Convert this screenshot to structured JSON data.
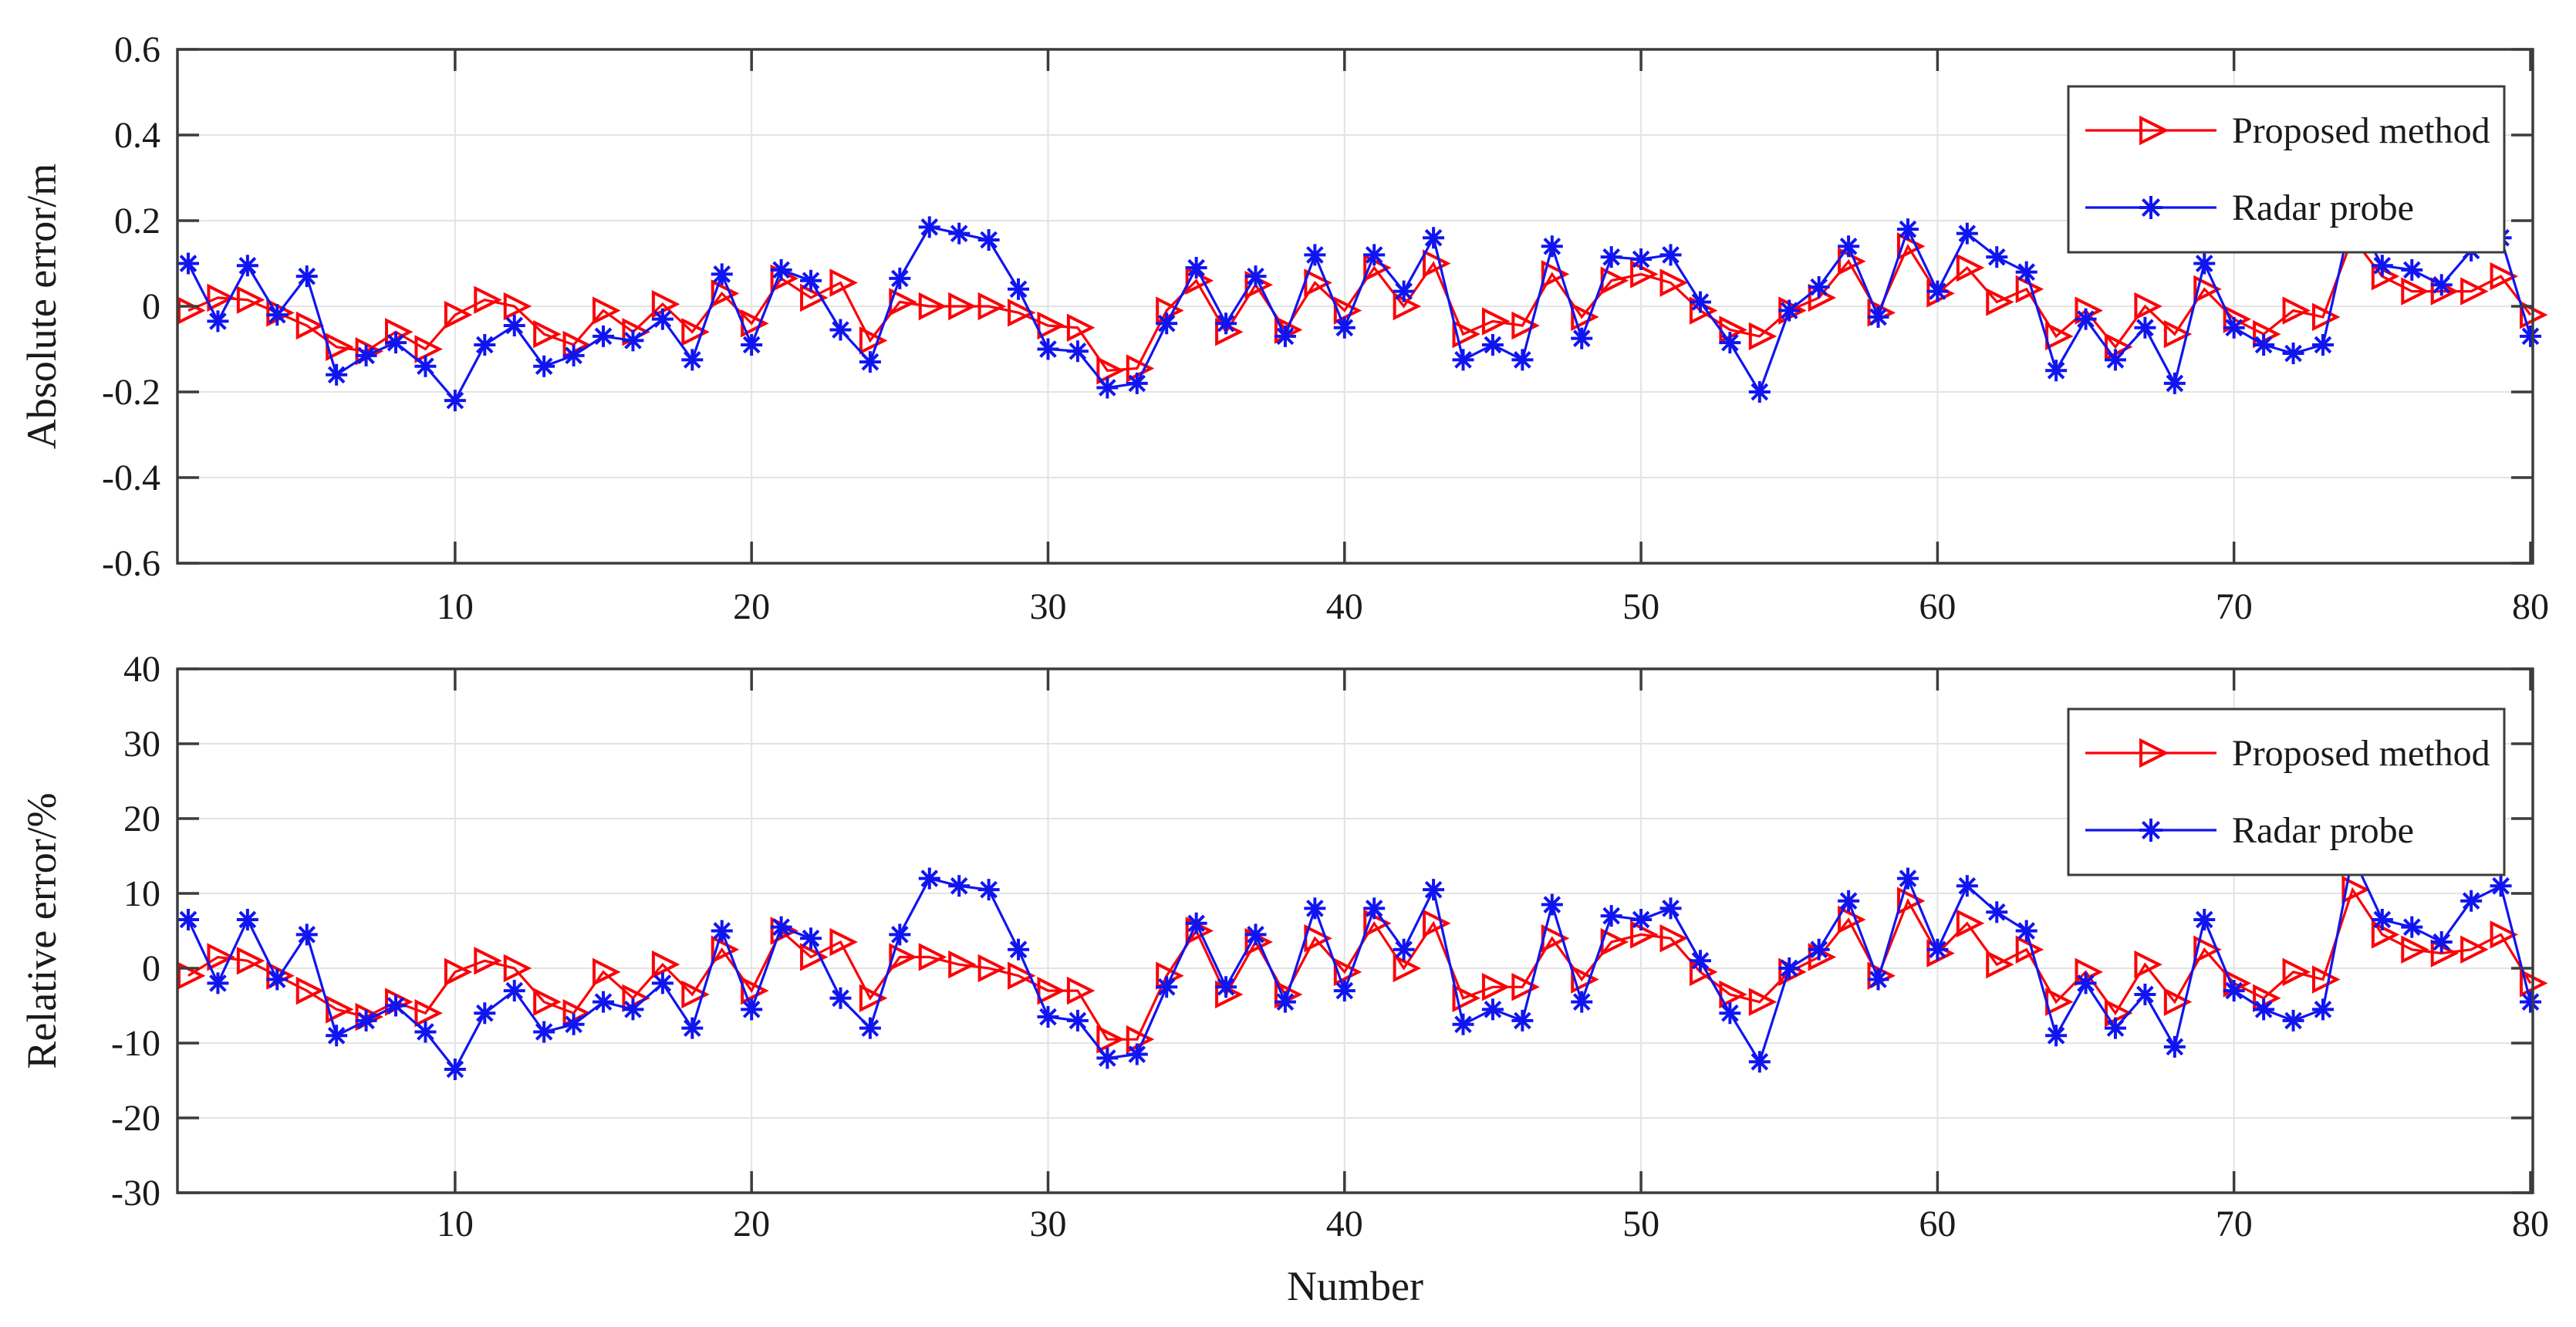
{
  "figure": {
    "background": "#ffffff",
    "axis_color": "#3c3c3c",
    "grid_color": "#e3e3e3",
    "proposed_color": "#fb0207",
    "radar_color": "#1015f0"
  },
  "chart_data": [
    {
      "type": "line",
      "title": "",
      "xlabel": "",
      "ylabel": "Absolute error/m",
      "xlim": [
        1,
        80
      ],
      "ylim": [
        -0.6,
        0.6
      ],
      "xticks": [
        10,
        20,
        30,
        40,
        50,
        60,
        70,
        80
      ],
      "yticks": [
        0.6,
        0.4,
        0.2,
        0,
        -0.2,
        -0.4,
        -0.6
      ],
      "ytick_labels": [
        "0.6",
        "0.4",
        "0.2",
        "0",
        "-0.2",
        "-0.4",
        "-0.6"
      ],
      "grid": true,
      "legend": {
        "position": "top-right",
        "entries": [
          "Proposed method",
          "Radar probe"
        ]
      },
      "x": [
        1,
        2,
        3,
        4,
        5,
        6,
        7,
        8,
        9,
        10,
        11,
        12,
        13,
        14,
        15,
        16,
        17,
        18,
        19,
        20,
        21,
        22,
        23,
        24,
        25,
        26,
        27,
        28,
        29,
        30,
        31,
        32,
        33,
        34,
        35,
        36,
        37,
        38,
        39,
        40,
        41,
        42,
        43,
        44,
        45,
        46,
        47,
        48,
        49,
        50,
        51,
        52,
        53,
        54,
        55,
        56,
        57,
        58,
        59,
        60,
        61,
        62,
        63,
        64,
        65,
        66,
        67,
        68,
        69,
        70,
        71,
        72,
        73,
        74,
        75,
        76,
        77,
        78,
        79,
        80
      ],
      "series": [
        {
          "name": "Proposed method",
          "color": "#fb0207",
          "marker": "triangle-right",
          "values": [
            -0.01,
            0.02,
            0.015,
            -0.015,
            -0.045,
            -0.095,
            -0.105,
            -0.06,
            -0.1,
            -0.02,
            0.015,
            0,
            -0.065,
            -0.09,
            -0.01,
            -0.06,
            0.005,
            -0.06,
            0.03,
            -0.04,
            0.065,
            0.02,
            0.055,
            -0.08,
            0.01,
            0,
            0,
            0,
            -0.015,
            -0.045,
            -0.05,
            -0.15,
            -0.145,
            -0.01,
            0.06,
            -0.06,
            0.05,
            -0.055,
            0.055,
            -0.01,
            0.09,
            0,
            0.1,
            -0.065,
            -0.035,
            -0.045,
            0.075,
            -0.025,
            0.06,
            0.075,
            0.055,
            -0.01,
            -0.055,
            -0.07,
            -0.01,
            0.02,
            0.105,
            -0.015,
            0.14,
            0.03,
            0.09,
            0.01,
            0.04,
            -0.07,
            -0.01,
            -0.095,
            0,
            -0.065,
            0.04,
            -0.03,
            -0.065,
            -0.01,
            -0.025,
            0.16,
            0.07,
            0.035,
            0.035,
            0.035,
            0.07,
            -0.02
          ]
        },
        {
          "name": "Radar probe",
          "color": "#1015f0",
          "marker": "asterisk",
          "values": [
            0.1,
            -0.035,
            0.095,
            -0.02,
            0.07,
            -0.16,
            -0.115,
            -0.085,
            -0.14,
            -0.22,
            -0.09,
            -0.045,
            -0.14,
            -0.115,
            -0.07,
            -0.08,
            -0.03,
            -0.125,
            0.075,
            -0.09,
            0.085,
            0.06,
            -0.055,
            -0.13,
            0.065,
            0.185,
            0.17,
            0.155,
            0.04,
            -0.1,
            -0.105,
            -0.19,
            -0.18,
            -0.04,
            0.09,
            -0.04,
            0.07,
            -0.07,
            0.12,
            -0.05,
            0.12,
            0.035,
            0.16,
            -0.125,
            -0.09,
            -0.125,
            0.14,
            -0.075,
            0.115,
            0.11,
            0.12,
            0.01,
            -0.085,
            -0.2,
            -0.01,
            0.045,
            0.14,
            -0.025,
            0.18,
            0.035,
            0.17,
            0.115,
            0.08,
            -0.15,
            -0.03,
            -0.125,
            -0.05,
            -0.18,
            0.1,
            -0.05,
            -0.09,
            -0.11,
            -0.09,
            0.22,
            0.095,
            0.085,
            0.05,
            0.13,
            0.16,
            -0.07
          ]
        }
      ]
    },
    {
      "type": "line",
      "title": "",
      "xlabel": "Number",
      "ylabel": "Relative error/%",
      "xlim": [
        1,
        80
      ],
      "ylim": [
        -30,
        40
      ],
      "xticks": [
        10,
        20,
        30,
        40,
        50,
        60,
        70,
        80
      ],
      "yticks": [
        40,
        30,
        20,
        10,
        0,
        -10,
        -20,
        -30
      ],
      "ytick_labels": [
        "40",
        "30",
        "20",
        "10",
        "0",
        "-10",
        "-20",
        "-30"
      ],
      "grid": true,
      "legend": {
        "position": "top-right",
        "entries": [
          "Proposed method",
          "Radar probe"
        ]
      },
      "x": [
        1,
        2,
        3,
        4,
        5,
        6,
        7,
        8,
        9,
        10,
        11,
        12,
        13,
        14,
        15,
        16,
        17,
        18,
        19,
        20,
        21,
        22,
        23,
        24,
        25,
        26,
        27,
        28,
        29,
        30,
        31,
        32,
        33,
        34,
        35,
        36,
        37,
        38,
        39,
        40,
        41,
        42,
        43,
        44,
        45,
        46,
        47,
        48,
        49,
        50,
        51,
        52,
        53,
        54,
        55,
        56,
        57,
        58,
        59,
        60,
        61,
        62,
        63,
        64,
        65,
        66,
        67,
        68,
        69,
        70,
        71,
        72,
        73,
        74,
        75,
        76,
        77,
        78,
        79,
        80
      ],
      "series": [
        {
          "name": "Proposed method",
          "color": "#fb0207",
          "marker": "triangle-right",
          "values": [
            -1,
            1.5,
            1,
            -1,
            -3,
            -5.5,
            -6.5,
            -4.5,
            -6,
            -0.5,
            1,
            0,
            -4.5,
            -6,
            -0.5,
            -4,
            0.5,
            -3.5,
            2.5,
            -3,
            5,
            1.5,
            3.5,
            -4,
            1.5,
            1.5,
            0.5,
            0,
            -1,
            -3,
            -3,
            -9.5,
            -9.5,
            -1,
            5,
            -3.5,
            3.5,
            -3.5,
            4,
            -0.5,
            6,
            0,
            6,
            -4,
            -2.5,
            -2.5,
            4,
            -1.5,
            3.5,
            4.5,
            4,
            -0.5,
            -3.5,
            -4.5,
            -0.5,
            1.5,
            6.5,
            -1,
            9,
            2,
            6,
            0.5,
            2.5,
            -4.5,
            -0.5,
            -6,
            0.5,
            -4.5,
            2.5,
            -2,
            -4,
            -0.5,
            -1.5,
            10.5,
            4.5,
            2.5,
            2,
            2.5,
            4.5,
            -2
          ]
        },
        {
          "name": "Radar probe",
          "color": "#1015f0",
          "marker": "asterisk",
          "values": [
            6.5,
            -2,
            6.5,
            -1.5,
            4.5,
            -9,
            -7,
            -5,
            -8.5,
            -13.5,
            -6,
            -3,
            -8.5,
            -7.5,
            -4.5,
            -5.5,
            -2,
            -8,
            5,
            -5.5,
            5.5,
            4,
            -4,
            -8,
            4.5,
            12,
            11,
            10.5,
            2.5,
            -6.5,
            -7,
            -12,
            -11.5,
            -2.5,
            6,
            -2.5,
            4.5,
            -4.5,
            8,
            -3,
            8,
            2.5,
            10.5,
            -7.5,
            -5.5,
            -7,
            8.5,
            -4.5,
            7,
            6.5,
            8,
            1,
            -6,
            -12.5,
            0,
            2.5,
            9,
            -1.5,
            12,
            2.5,
            11,
            7.5,
            5,
            -9,
            -2,
            -8,
            -3.5,
            -10.5,
            6.5,
            -3,
            -5.5,
            -7,
            -5.5,
            15,
            6.5,
            5.5,
            3.5,
            9,
            11,
            -4.5
          ]
        }
      ]
    }
  ]
}
